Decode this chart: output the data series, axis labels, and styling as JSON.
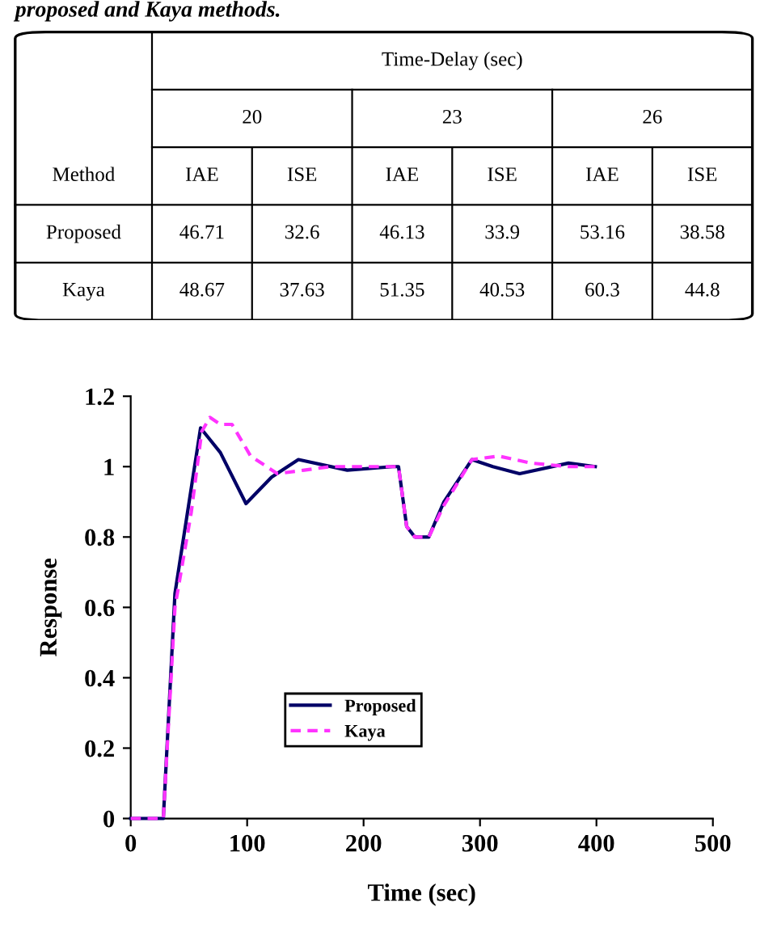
{
  "chart_data": [
    {
      "type": "other",
      "title": "proposed and Kaya methods.",
      "xlabel": "Time-Delay (sec)",
      "ylabel": "Method",
      "annotations": [
        "20",
        "23",
        "26"
      ],
      "categories": [
        "IAE",
        "ISE",
        "IAE",
        "ISE",
        "IAE",
        "ISE"
      ],
      "y_categories": [
        "Proposed",
        "Kaya"
      ],
      "cell_labels": [
        [
          "46.71",
          "32.6",
          "46.13",
          "33.9",
          "53.16",
          "38.58"
        ],
        [
          "48.67",
          "37.63",
          "51.35",
          "40.53",
          "60.3",
          "44.8"
        ]
      ]
    },
    {
      "type": "line",
      "xlabel": "Time (sec)",
      "ylabel": "Response",
      "xlim": [
        0,
        500
      ],
      "xticks": [
        0,
        100,
        200,
        300,
        400,
        500
      ],
      "ylim": [
        0,
        1.2
      ],
      "yticks": [
        0,
        0.2,
        0.4,
        0.6,
        0.8,
        1,
        1.2
      ],
      "grid": false,
      "legend": "lower left",
      "series": [
        {
          "name": "Proposed",
          "color": "#000066",
          "line_style": "solid",
          "x": [
            0,
            28,
            38,
            60,
            77,
            99,
            121,
            144,
            186,
            225,
            230,
            237,
            244,
            256,
            269,
            293,
            311,
            334,
            376,
            399
          ],
          "values": [
            0,
            0,
            0.64,
            1.11,
            1.04,
            0.895,
            0.97,
            1.02,
            0.99,
            1.0,
            1.0,
            0.83,
            0.8,
            0.8,
            0.9,
            1.02,
            1.0,
            0.98,
            1.01,
            1.0
          ]
        },
        {
          "name": "Kaya",
          "color": "#ff33ff",
          "line_style": "dashed",
          "x": [
            0,
            28,
            38,
            52,
            61,
            68,
            77,
            87,
            103,
            126,
            149,
            172,
            225,
            230,
            237,
            244,
            256,
            269,
            293,
            316,
            344,
            376,
            399
          ],
          "values": [
            0,
            0,
            0.6,
            0.87,
            1.1,
            1.14,
            1.12,
            1.12,
            1.03,
            0.98,
            0.99,
            1.0,
            1.0,
            1.0,
            0.83,
            0.8,
            0.8,
            0.89,
            1.02,
            1.03,
            1.01,
            1.0,
            1.0
          ]
        }
      ]
    }
  ]
}
